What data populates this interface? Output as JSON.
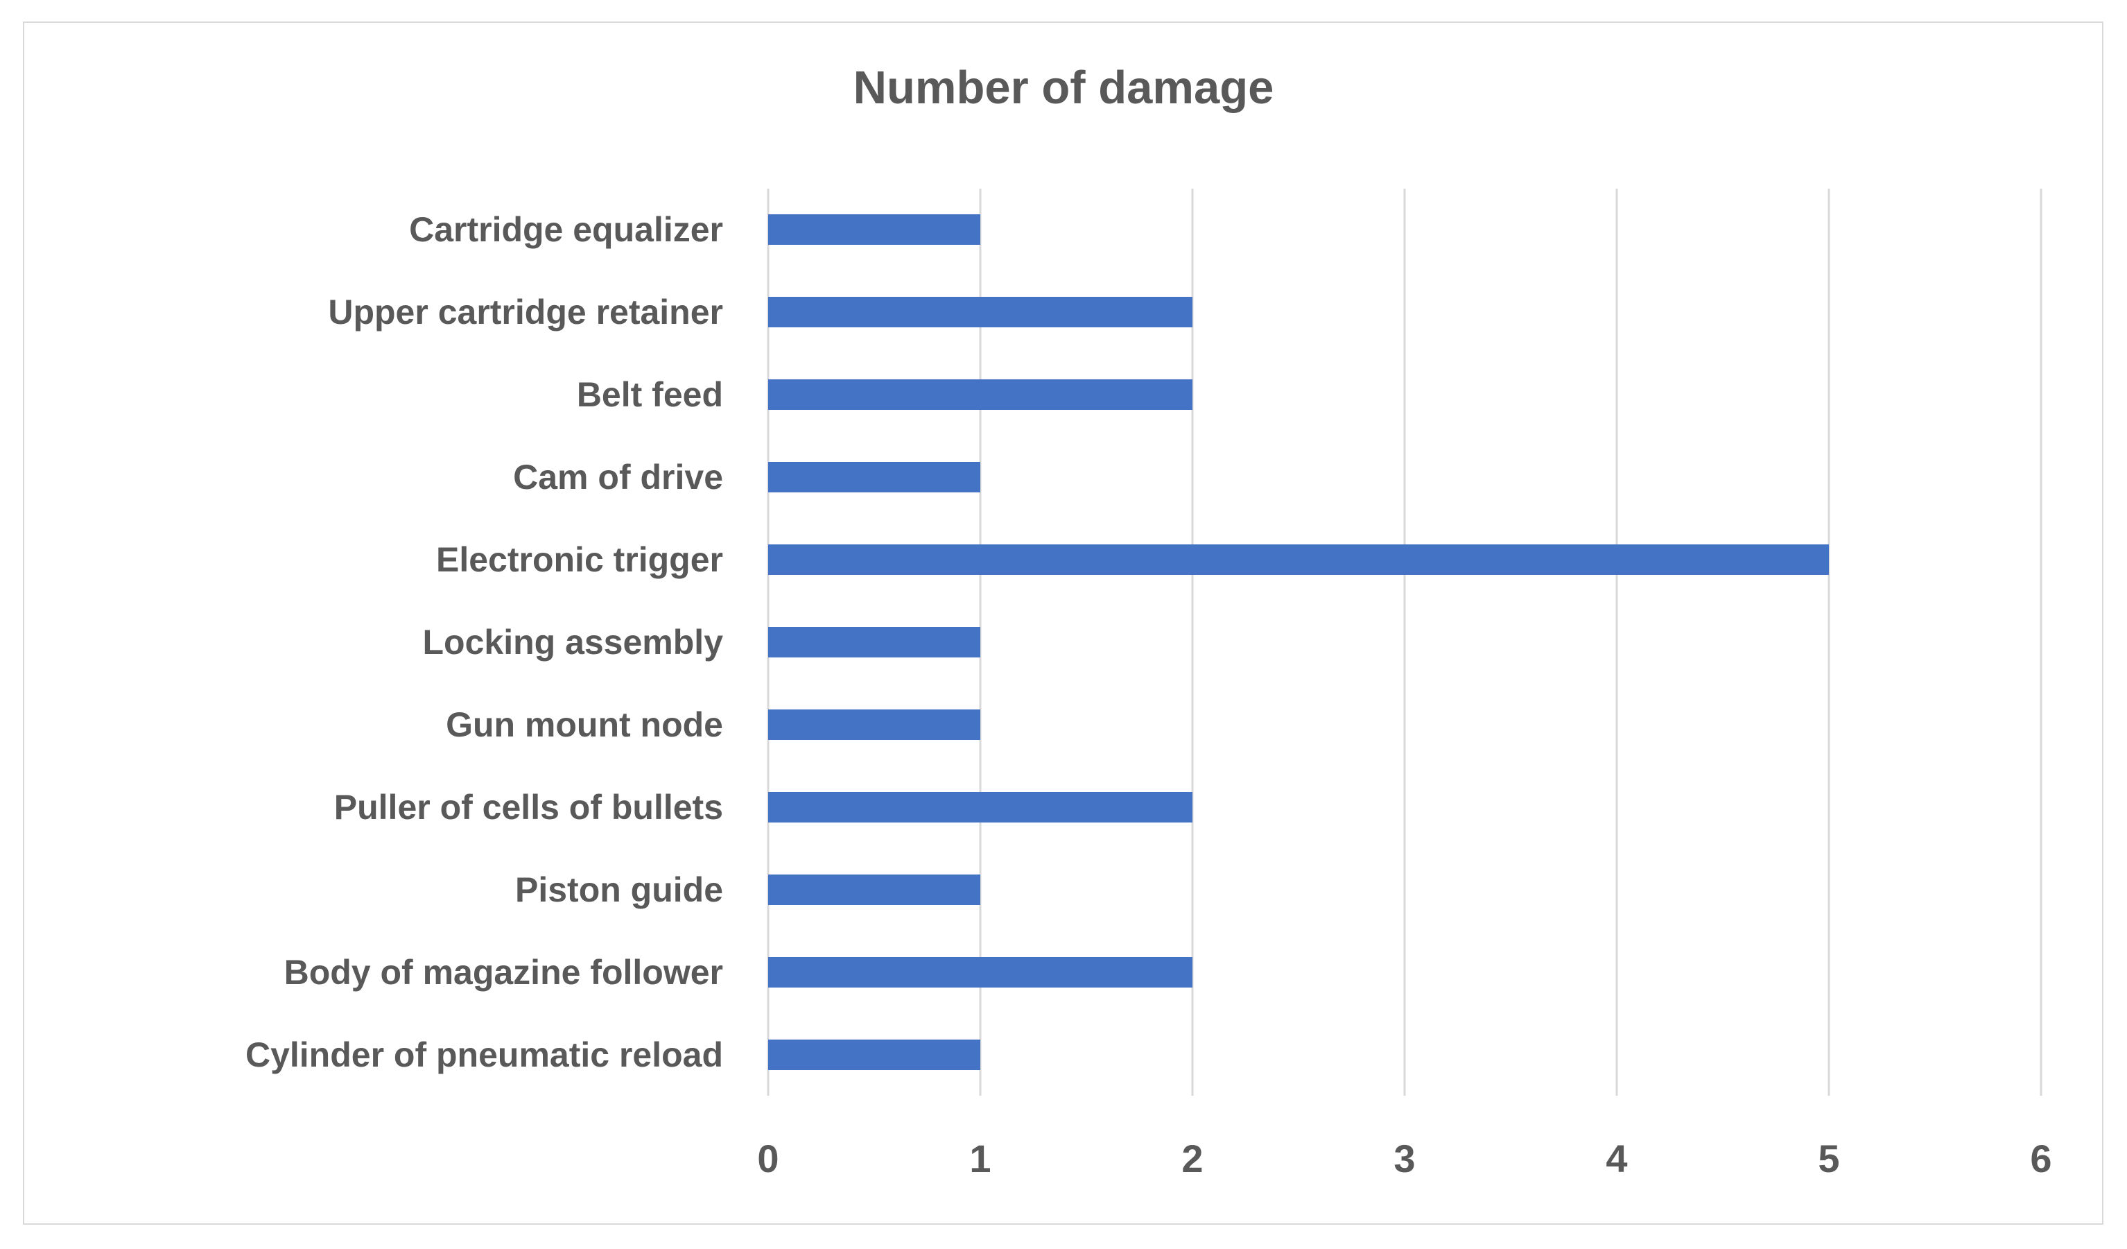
{
  "chart_data": {
    "type": "bar",
    "orientation": "horizontal",
    "title": "Number of damage",
    "categories": [
      "Cartridge equalizer",
      "Upper cartridge retainer",
      "Belt feed",
      "Cam of drive",
      "Electronic trigger",
      "Locking assembly",
      "Gun mount node",
      "Puller of cells of bullets",
      "Piston guide",
      "Body of magazine follower",
      "Cylinder of pneumatic reload"
    ],
    "values": [
      1,
      2,
      2,
      1,
      5,
      1,
      1,
      2,
      1,
      2,
      1
    ],
    "x_ticks": [
      "0",
      "1",
      "2",
      "3",
      "4",
      "5",
      "6"
    ],
    "xlim": [
      0,
      6
    ],
    "xlabel": "",
    "ylabel": "",
    "grid": "vertical",
    "legend": "none",
    "bar_color": "#4472C4",
    "text_color": "#595959",
    "gridline_color": "#D9D9D9",
    "frame_color": "#D9D9D9"
  }
}
